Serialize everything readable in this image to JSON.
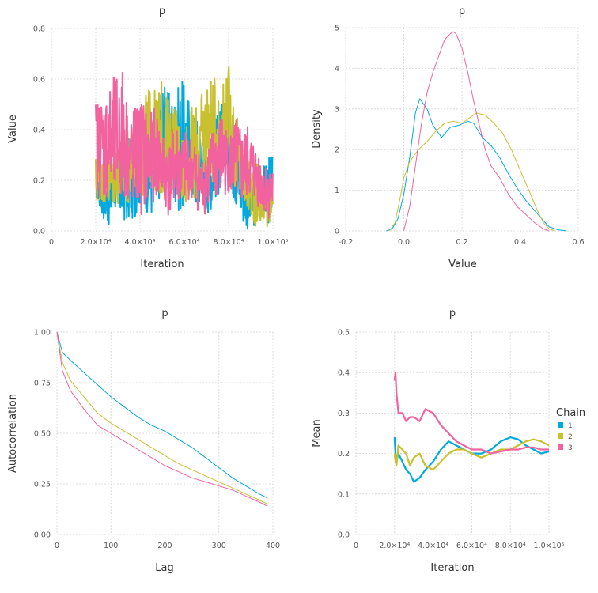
{
  "chart_data": [
    {
      "type": "line",
      "panel": "trace",
      "title": "p",
      "xlabel": "Iteration",
      "ylabel": "Value",
      "xlim": [
        0,
        100000
      ],
      "ylim": [
        0,
        0.8
      ],
      "xticks": [
        {
          "v": 0,
          "label": "0"
        },
        {
          "v": 20000,
          "label": "2.0×10⁴"
        },
        {
          "v": 40000,
          "label": "4.0×10⁴"
        },
        {
          "v": 60000,
          "label": "6.0×10⁴"
        },
        {
          "v": 80000,
          "label": "8.0×10⁴"
        },
        {
          "v": 100000,
          "label": "1.0×10⁵"
        }
      ],
      "yticks": [
        {
          "v": 0,
          "label": "0.0"
        },
        {
          "v": 0.2,
          "label": "0.2"
        },
        {
          "v": 0.4,
          "label": "0.4"
        },
        {
          "v": 0.6,
          "label": "0.6"
        },
        {
          "v": 0.8,
          "label": "0.8"
        }
      ],
      "series": [
        {
          "name": "1",
          "color": "#00a9e0",
          "x": [
            20000,
            23000,
            26000,
            29000,
            32000,
            35000,
            38000,
            41000,
            44000,
            47000,
            50000,
            53000,
            56000,
            59000,
            62000,
            65000,
            68000,
            71000,
            74000,
            77000,
            80000,
            83000,
            86000,
            89000,
            92000,
            95000,
            98000,
            100000
          ],
          "low": [
            0.13,
            0.05,
            0.02,
            0.08,
            0.04,
            0.02,
            0.06,
            0.12,
            0.05,
            0.04,
            0.18,
            0.12,
            0.1,
            0.05,
            0.16,
            0.08,
            0.1,
            0.07,
            0.12,
            0.15,
            0.2,
            0.1,
            0.03,
            0.0,
            0.02,
            0.05,
            0.02,
            0.08
          ],
          "high": [
            0.28,
            0.22,
            0.2,
            0.32,
            0.3,
            0.38,
            0.35,
            0.45,
            0.4,
            0.5,
            0.62,
            0.55,
            0.56,
            0.6,
            0.55,
            0.48,
            0.42,
            0.3,
            0.45,
            0.52,
            0.5,
            0.42,
            0.3,
            0.22,
            0.18,
            0.25,
            0.3,
            0.3
          ]
        },
        {
          "name": "2",
          "color": "#c9c030",
          "x": [
            20000,
            23000,
            26000,
            29000,
            32000,
            35000,
            38000,
            41000,
            44000,
            47000,
            50000,
            53000,
            56000,
            59000,
            62000,
            65000,
            68000,
            71000,
            74000,
            77000,
            80000,
            83000,
            86000,
            89000,
            92000,
            95000,
            98000,
            100000
          ],
          "low": [
            0.1,
            0.12,
            0.08,
            0.1,
            0.08,
            0.1,
            0.15,
            0.12,
            0.2,
            0.15,
            0.12,
            0.18,
            0.22,
            0.1,
            0.12,
            0.1,
            0.18,
            0.2,
            0.15,
            0.25,
            0.3,
            0.15,
            0.1,
            0.05,
            0.02,
            0.0,
            0.02,
            0.05
          ],
          "high": [
            0.3,
            0.28,
            0.3,
            0.35,
            0.38,
            0.4,
            0.45,
            0.5,
            0.58,
            0.55,
            0.6,
            0.52,
            0.5,
            0.42,
            0.48,
            0.5,
            0.55,
            0.62,
            0.6,
            0.58,
            0.66,
            0.5,
            0.35,
            0.3,
            0.28,
            0.25,
            0.22,
            0.2
          ]
        },
        {
          "name": "3",
          "color": "#f2629f",
          "x": [
            20000,
            23000,
            26000,
            29000,
            32000,
            35000,
            38000,
            41000,
            44000,
            47000,
            50000,
            53000,
            56000,
            59000,
            62000,
            65000,
            68000,
            71000,
            74000,
            77000,
            80000,
            83000,
            86000,
            89000,
            92000,
            95000,
            98000,
            100000
          ],
          "low": [
            0.15,
            0.12,
            0.1,
            0.08,
            0.12,
            0.1,
            0.08,
            0.05,
            0.1,
            0.12,
            0.1,
            0.05,
            0.1,
            0.08,
            0.12,
            0.1,
            0.05,
            0.08,
            0.1,
            0.12,
            0.15,
            0.1,
            0.08,
            0.12,
            0.1,
            0.08,
            0.05,
            0.06
          ],
          "high": [
            0.52,
            0.55,
            0.58,
            0.62,
            0.66,
            0.48,
            0.5,
            0.55,
            0.45,
            0.5,
            0.4,
            0.35,
            0.45,
            0.38,
            0.4,
            0.35,
            0.3,
            0.38,
            0.42,
            0.48,
            0.38,
            0.45,
            0.4,
            0.42,
            0.35,
            0.3,
            0.25,
            0.28
          ]
        }
      ]
    },
    {
      "type": "line",
      "panel": "density",
      "title": "p",
      "xlabel": "Value",
      "ylabel": "Density",
      "xlim": [
        -0.2,
        0.6
      ],
      "ylim": [
        0,
        5
      ],
      "xticks": [
        {
          "v": -0.2,
          "label": "-0.2"
        },
        {
          "v": 0,
          "label": "0.0"
        },
        {
          "v": 0.2,
          "label": "0.2"
        },
        {
          "v": 0.4,
          "label": "0.4"
        },
        {
          "v": 0.6,
          "label": "0.6"
        }
      ],
      "yticks": [
        {
          "v": 0,
          "label": "0"
        },
        {
          "v": 1,
          "label": "1"
        },
        {
          "v": 2,
          "label": "2"
        },
        {
          "v": 3,
          "label": "3"
        },
        {
          "v": 4,
          "label": "4"
        },
        {
          "v": 5,
          "label": "5"
        }
      ],
      "series": [
        {
          "name": "1",
          "color": "#00a9e0",
          "x": [
            -0.06,
            -0.04,
            -0.02,
            0.0,
            0.02,
            0.04,
            0.055,
            0.08,
            0.1,
            0.13,
            0.16,
            0.19,
            0.22,
            0.24,
            0.27,
            0.3,
            0.33,
            0.36,
            0.39,
            0.42,
            0.45,
            0.48,
            0.5,
            0.53,
            0.56
          ],
          "y": [
            0,
            0.05,
            0.3,
            0.9,
            1.8,
            2.9,
            3.25,
            3.0,
            2.6,
            2.3,
            2.55,
            2.6,
            2.7,
            2.65,
            2.3,
            2.1,
            1.8,
            1.4,
            1.05,
            0.75,
            0.5,
            0.25,
            0.1,
            0.03,
            0
          ]
        },
        {
          "name": "2",
          "color": "#c9c030",
          "x": [
            -0.05,
            -0.03,
            -0.01,
            0.0,
            0.02,
            0.05,
            0.08,
            0.11,
            0.14,
            0.17,
            0.2,
            0.23,
            0.25,
            0.28,
            0.31,
            0.34,
            0.37,
            0.4,
            0.43,
            0.46,
            0.48,
            0.5,
            0.52
          ],
          "y": [
            0,
            0.2,
            0.9,
            1.3,
            1.7,
            2.0,
            2.2,
            2.45,
            2.65,
            2.7,
            2.65,
            2.8,
            2.9,
            2.85,
            2.65,
            2.4,
            2.0,
            1.5,
            1.0,
            0.5,
            0.2,
            0.05,
            0
          ]
        },
        {
          "name": "3",
          "color": "#f2629f",
          "x": [
            0.0,
            0.02,
            0.04,
            0.06,
            0.08,
            0.1,
            0.12,
            0.14,
            0.16,
            0.17,
            0.18,
            0.2,
            0.22,
            0.24,
            0.26,
            0.28,
            0.3,
            0.33,
            0.36,
            0.39,
            0.42,
            0.45,
            0.48,
            0.5
          ],
          "y": [
            0,
            0.6,
            1.6,
            2.6,
            3.4,
            3.9,
            4.3,
            4.7,
            4.85,
            4.9,
            4.85,
            4.5,
            3.9,
            3.2,
            2.6,
            2.0,
            1.6,
            1.3,
            0.9,
            0.6,
            0.4,
            0.2,
            0.05,
            0
          ]
        }
      ]
    },
    {
      "type": "line",
      "panel": "autocorrelation",
      "title": "p",
      "xlabel": "Lag",
      "ylabel": "Autocorrelation",
      "xlim": [
        0,
        400
      ],
      "ylim": [
        0,
        1
      ],
      "xticks": [
        {
          "v": 0,
          "label": "0"
        },
        {
          "v": 100,
          "label": "100"
        },
        {
          "v": 200,
          "label": "200"
        },
        {
          "v": 300,
          "label": "300"
        },
        {
          "v": 400,
          "label": "400"
        }
      ],
      "yticks": [
        {
          "v": 0,
          "label": "0.00"
        },
        {
          "v": 0.25,
          "label": "0.25"
        },
        {
          "v": 0.5,
          "label": "0.50"
        },
        {
          "v": 0.75,
          "label": "0.75"
        },
        {
          "v": 1,
          "label": "1.00"
        }
      ],
      "series": [
        {
          "name": "1",
          "color": "#00a9e0",
          "x": [
            0,
            10,
            25,
            50,
            75,
            100,
            125,
            150,
            175,
            200,
            225,
            250,
            275,
            300,
            325,
            350,
            375,
            390
          ],
          "y": [
            1.0,
            0.9,
            0.86,
            0.8,
            0.74,
            0.68,
            0.63,
            0.58,
            0.54,
            0.51,
            0.47,
            0.43,
            0.38,
            0.33,
            0.28,
            0.24,
            0.2,
            0.18
          ]
        },
        {
          "name": "2",
          "color": "#c9c030",
          "x": [
            0,
            10,
            25,
            50,
            75,
            100,
            125,
            150,
            175,
            200,
            225,
            250,
            275,
            300,
            325,
            350,
            375,
            390
          ],
          "y": [
            1.0,
            0.85,
            0.76,
            0.68,
            0.6,
            0.55,
            0.51,
            0.47,
            0.43,
            0.39,
            0.35,
            0.32,
            0.29,
            0.26,
            0.23,
            0.2,
            0.17,
            0.15
          ]
        },
        {
          "name": "3",
          "color": "#f2629f",
          "x": [
            0,
            10,
            25,
            50,
            75,
            100,
            125,
            150,
            175,
            200,
            225,
            250,
            275,
            300,
            325,
            350,
            375,
            390
          ],
          "y": [
            1.0,
            0.81,
            0.71,
            0.62,
            0.54,
            0.5,
            0.46,
            0.42,
            0.38,
            0.34,
            0.31,
            0.28,
            0.26,
            0.24,
            0.22,
            0.19,
            0.16,
            0.14
          ]
        }
      ]
    },
    {
      "type": "line",
      "panel": "mean",
      "title": "p",
      "xlabel": "Iteration",
      "ylabel": "Mean",
      "xlim": [
        0,
        100000
      ],
      "ylim": [
        0,
        0.5
      ],
      "xticks": [
        {
          "v": 0,
          "label": "0"
        },
        {
          "v": 20000,
          "label": "2.0×10⁴"
        },
        {
          "v": 40000,
          "label": "4.0×10⁴"
        },
        {
          "v": 60000,
          "label": "6.0×10⁴"
        },
        {
          "v": 80000,
          "label": "8.0×10⁴"
        },
        {
          "v": 100000,
          "label": "1.0×10⁵"
        }
      ],
      "yticks": [
        {
          "v": 0,
          "label": "0.0"
        },
        {
          "v": 0.1,
          "label": "0.1"
        },
        {
          "v": 0.2,
          "label": "0.2"
        },
        {
          "v": 0.3,
          "label": "0.3"
        },
        {
          "v": 0.4,
          "label": "0.4"
        },
        {
          "v": 0.5,
          "label": "0.5"
        }
      ],
      "legend": {
        "title": "Chain",
        "entries": [
          "1",
          "2",
          "3"
        ],
        "placement": "right"
      },
      "series": [
        {
          "name": "1",
          "color": "#00a9e0",
          "x": [
            20000,
            20500,
            21000,
            22000,
            24000,
            26000,
            28000,
            30000,
            33000,
            36000,
            40000,
            44000,
            48000,
            52000,
            56000,
            60000,
            65000,
            70000,
            75000,
            80000,
            84000,
            88000,
            92000,
            96000,
            100000
          ],
          "y": [
            0.24,
            0.2,
            0.18,
            0.2,
            0.18,
            0.16,
            0.15,
            0.13,
            0.14,
            0.16,
            0.18,
            0.21,
            0.23,
            0.22,
            0.21,
            0.2,
            0.2,
            0.21,
            0.23,
            0.24,
            0.235,
            0.22,
            0.21,
            0.2,
            0.205
          ]
        },
        {
          "name": "2",
          "color": "#c9c030",
          "x": [
            20000,
            20500,
            21000,
            22000,
            24000,
            26000,
            28000,
            30000,
            33000,
            36000,
            40000,
            44000,
            48000,
            52000,
            56000,
            60000,
            65000,
            70000,
            75000,
            80000,
            84000,
            88000,
            92000,
            96000,
            100000
          ],
          "y": [
            0.2,
            0.18,
            0.17,
            0.22,
            0.21,
            0.2,
            0.17,
            0.19,
            0.2,
            0.17,
            0.16,
            0.18,
            0.2,
            0.21,
            0.21,
            0.2,
            0.19,
            0.2,
            0.21,
            0.21,
            0.22,
            0.23,
            0.235,
            0.23,
            0.22
          ]
        },
        {
          "name": "3",
          "color": "#f2629f",
          "x": [
            20000,
            20500,
            21000,
            22000,
            24000,
            26000,
            28000,
            30000,
            33000,
            36000,
            40000,
            44000,
            48000,
            52000,
            56000,
            60000,
            65000,
            70000,
            75000,
            80000,
            84000,
            88000,
            92000,
            96000,
            100000
          ],
          "y": [
            0.38,
            0.4,
            0.35,
            0.3,
            0.3,
            0.28,
            0.29,
            0.29,
            0.28,
            0.31,
            0.3,
            0.27,
            0.25,
            0.23,
            0.22,
            0.21,
            0.21,
            0.2,
            0.205,
            0.21,
            0.21,
            0.215,
            0.215,
            0.21,
            0.21
          ]
        }
      ]
    }
  ]
}
